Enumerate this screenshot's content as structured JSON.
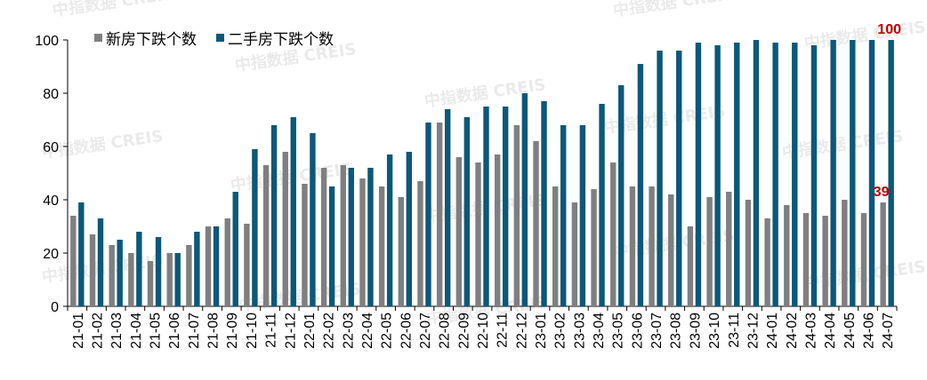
{
  "chart_data": {
    "type": "bar",
    "categories": [
      "21-01",
      "21-02",
      "21-03",
      "21-04",
      "21-05",
      "21-06",
      "21-07",
      "21-08",
      "21-09",
      "21-10",
      "21-11",
      "21-12",
      "22-01",
      "22-02",
      "22-03",
      "22-04",
      "22-05",
      "22-06",
      "22-07",
      "22-08",
      "22-09",
      "22-10",
      "22-11",
      "22-12",
      "23-01",
      "23-02",
      "23-03",
      "23-04",
      "23-05",
      "23-06",
      "23-07",
      "23-08",
      "23-09",
      "23-10",
      "23-11",
      "23-12",
      "24-01",
      "24-02",
      "24-03",
      "24-04",
      "24-05",
      "24-06",
      "24-07"
    ],
    "series": [
      {
        "name": "新房下跌个数",
        "color": "#7f7f7f",
        "values": [
          34,
          27,
          23,
          20,
          17,
          20,
          23,
          30,
          33,
          31,
          53,
          58,
          46,
          52,
          53,
          48,
          45,
          41,
          47,
          69,
          56,
          54,
          57,
          68,
          62,
          45,
          39,
          44,
          54,
          45,
          45,
          42,
          30,
          41,
          43,
          40,
          33,
          38,
          35,
          34,
          40,
          35,
          39
        ]
      },
      {
        "name": "二手房下跌个数",
        "color": "#0b5878",
        "values": [
          39,
          33,
          25,
          28,
          26,
          20,
          28,
          30,
          43,
          59,
          68,
          71,
          65,
          45,
          52,
          52,
          57,
          58,
          69,
          74,
          71,
          75,
          75,
          80,
          77,
          68,
          68,
          76,
          83,
          91,
          96,
          96,
          99,
          98,
          99,
          100,
          99,
          99,
          98,
          100,
          100,
          100,
          100
        ]
      }
    ],
    "ylim": [
      0,
      100
    ],
    "yticks": [
      0,
      20,
      40,
      60,
      80,
      100
    ],
    "legend_position": "top-left",
    "grid": false,
    "data_labels": [
      {
        "series": 1,
        "index": 42,
        "text": "100",
        "color": "#c00000"
      },
      {
        "series": 0,
        "index": 42,
        "text": "39",
        "color": "#c00000"
      }
    ]
  },
  "watermark": "中指数据 CREIS"
}
